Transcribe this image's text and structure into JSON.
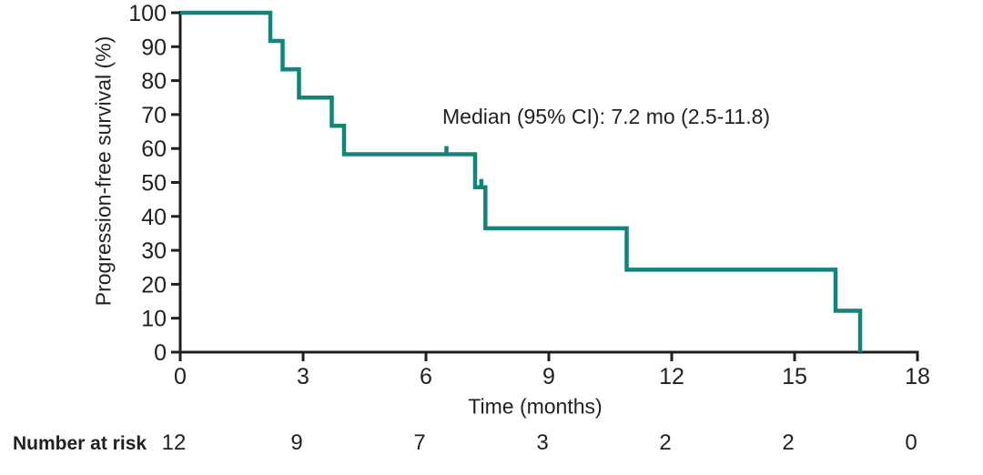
{
  "figure": {
    "background_color": "#ffffff",
    "text_color": "#231F20"
  },
  "chart_data": {
    "type": "line",
    "subtype": "kaplan-meier-step",
    "title": "",
    "annotation": "Median (95% CI): 7.2 mo (2.5-11.8)",
    "xlabel": "Time (months)",
    "ylabel": "Progression-free survival (%)",
    "xlim": [
      0,
      18
    ],
    "ylim": [
      0,
      100
    ],
    "xticks": [
      0,
      3,
      6,
      9,
      12,
      15,
      18
    ],
    "yticks": [
      0,
      10,
      20,
      30,
      40,
      50,
      60,
      70,
      80,
      90,
      100
    ],
    "grid": false,
    "legend": "none",
    "line_color": "#14847B",
    "axis_color": "#231F20",
    "step_points": [
      [
        0,
        100
      ],
      [
        2.2,
        100
      ],
      [
        2.2,
        91.7
      ],
      [
        2.5,
        91.7
      ],
      [
        2.5,
        83.3
      ],
      [
        2.9,
        83.3
      ],
      [
        2.9,
        75.0
      ],
      [
        3.7,
        75.0
      ],
      [
        3.7,
        66.7
      ],
      [
        4.0,
        66.7
      ],
      [
        4.0,
        58.3
      ],
      [
        7.2,
        58.3
      ],
      [
        7.2,
        48.6
      ],
      [
        7.45,
        48.6
      ],
      [
        7.45,
        36.5
      ],
      [
        10.9,
        36.5
      ],
      [
        10.9,
        24.3
      ],
      [
        16.0,
        24.3
      ],
      [
        16.0,
        12.2
      ],
      [
        16.6,
        12.2
      ],
      [
        16.6,
        0
      ]
    ],
    "censor_marks": [
      [
        6.5,
        58.3
      ],
      [
        7.35,
        48.6
      ]
    ],
    "number_at_risk": {
      "label": "Number at risk",
      "times": [
        0,
        3,
        6,
        9,
        12,
        15,
        18
      ],
      "values": [
        12,
        9,
        7,
        3,
        2,
        2,
        0
      ]
    }
  }
}
